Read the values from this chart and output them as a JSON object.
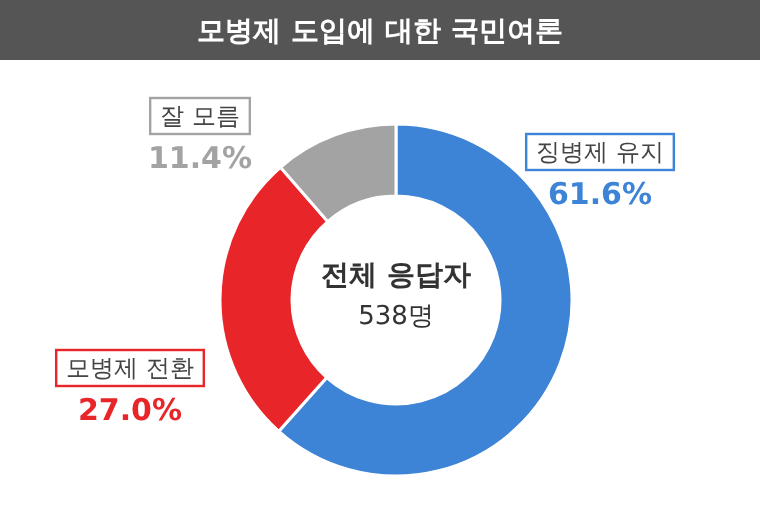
{
  "chart_data": {
    "type": "donut",
    "title": "모병제 도입에 대한 국민여론",
    "categories": [
      "징병제 유지",
      "모병제 전환",
      "잘 모름"
    ],
    "values": [
      61.6,
      27.0,
      11.4
    ],
    "value_labels": [
      "61.6%",
      "27.0%",
      "11.4%"
    ],
    "colors": [
      "#3d83d6",
      "#e8262a",
      "#a3a3a3"
    ],
    "annotations": [
      "전체 응답자",
      "538명"
    ]
  }
}
